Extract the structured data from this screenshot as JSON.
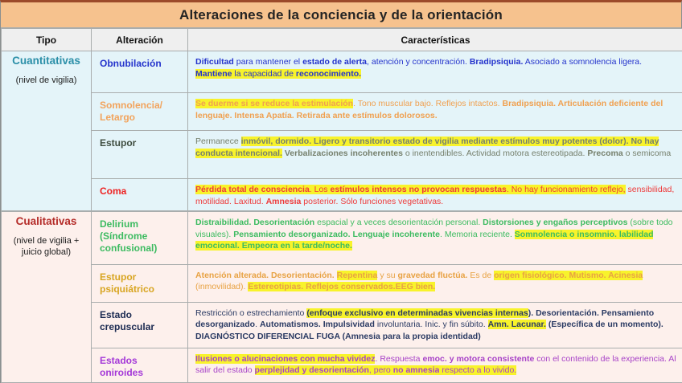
{
  "title": "Alteraciones de la conciencia y de la orientación",
  "columns": [
    "Tipo",
    "Alteración",
    "Características"
  ],
  "colors": {
    "title_bg": "#f6c28e",
    "header_bg": "#efefef",
    "quant_bg": "#e4f4f9",
    "qual_bg": "#fdf0ec",
    "highlight": "#f8f32b",
    "border": "#a9adad",
    "frame_top": "#9c4a2a"
  },
  "groups": [
    {
      "name": "Cuantitativas",
      "subtitle": "(nivel de vigilia)",
      "color": "#2b8fa8"
    },
    {
      "name": "Cualitativas",
      "subtitle": "(nivel de vigilia + juicio global)",
      "color": "#b42b28"
    }
  ],
  "rows": [
    {
      "label": "Obnubilación",
      "label_color": "#2433cc",
      "text_color": "#2433cc",
      "runs": [
        {
          "t": "Dificultad",
          "b": 1
        },
        {
          "t": " para mantener el "
        },
        {
          "t": "estado de alerta",
          "b": 1
        },
        {
          "t": ", atención y concentración. "
        },
        {
          "t": "Bradipsiquia.",
          "b": 1
        },
        {
          "t": " Asociado a somnolencia ligera. "
        },
        {
          "t": "Mantiene",
          "b": 1,
          "h": 1
        },
        {
          "t": " la capacidad de ",
          "h": 1
        },
        {
          "t": "reconocimiento.",
          "b": 1,
          "h": 1
        }
      ]
    },
    {
      "label": "Somnolencia/ Letargo",
      "label_color": "#f2a35c",
      "text_color": "#f0a050",
      "runs": [
        {
          "t": "Se duerme si se reduce la estimulación",
          "b": 1,
          "h": 1
        },
        {
          "t": ". Tono muscular bajo. Reflejos intactos. "
        },
        {
          "t": "Bradipsiquia. Articulación deficiente del lenguaje. Intensa Apatía. Retirada ante estímulos dolorosos.",
          "b": 1
        }
      ]
    },
    {
      "label": "Estupor",
      "label_color": "#3f4d40",
      "text_color": "#76806d",
      "runs": [
        {
          "t": "Permanece "
        },
        {
          "t": "inmóvil, dormido. Ligero y transitorio estado de vigilia mediante estímulos muy potentes (dolor). No hay conducta intencional.",
          "b": 1,
          "h": 1
        },
        {
          "t": " "
        },
        {
          "t": "Verbalizaciones incoherentes",
          "b": 1
        },
        {
          "t": " o inentendibles. Actividad motora estereotipada. "
        },
        {
          "t": "Precoma",
          "b": 1
        },
        {
          "t": " o semicoma"
        }
      ]
    },
    {
      "label": "Coma",
      "label_color": "#ee2222",
      "text_color": "#ee3b3b",
      "runs": [
        {
          "t": "Pérdida total de consciencia",
          "b": 1,
          "h": 1
        },
        {
          "t": ". Los ",
          "h": 1
        },
        {
          "t": "estímulos intensos no provocan respuestas",
          "b": 1,
          "h": 1
        },
        {
          "t": ". No hay funcionamiento reflejo,",
          "h": 1
        },
        {
          "t": " sensibilidad, motilidad. Laxitud. "
        },
        {
          "t": "Amnesia",
          "b": 1
        },
        {
          "t": " posterior. Sólo funciones vegetativas."
        }
      ]
    },
    {
      "label": "Delirium (Síndrome confusional)",
      "label_color": "#3cbb60",
      "text_color": "#3cbb60",
      "runs": [
        {
          "t": "Distraibilidad. Desorientación",
          "b": 1
        },
        {
          "t": " espacial y a veces desorientación personal. "
        },
        {
          "t": "Distorsiones y engaños perceptivos",
          "b": 1
        },
        {
          "t": " (sobre todo visuales). "
        },
        {
          "t": "Pensamiento desorganizado. Lenguaje incoherente",
          "b": 1
        },
        {
          "t": ". Memoria reciente. "
        },
        {
          "t": "Somnolencia o insomnio. labilidad emocional. Empeora en la tarde/noche.",
          "b": 1,
          "h": 1
        }
      ]
    },
    {
      "label": "Estupor psiquiátrico",
      "label_color": "#d8a521",
      "text_color": "#e8a243",
      "runs": [
        {
          "t": "Atención alterada. Desorientación. ",
          "b": 1
        },
        {
          "t": "Repentina",
          "b": 1,
          "h": 1
        },
        {
          "t": " y su "
        },
        {
          "t": "gravedad fluctúa.",
          "b": 1
        },
        {
          "t": " Es de "
        },
        {
          "t": "origen fisiológico. Mutismo. Acinesia",
          "b": 1,
          "h": 1
        },
        {
          "t": " (inmovilidad). "
        },
        {
          "t": "Estereotipias. Reflejos conservados.EEG bien.",
          "b": 1,
          "h": 1
        }
      ]
    },
    {
      "label": "Estado crepuscular",
      "label_color": "#1c2b52",
      "text_color": "#2a3a63",
      "runs": [
        {
          "t": "Restricción o estrechamiento "
        },
        {
          "t": "(enfoque exclusivo en determinadas vivencias internas",
          "b": 1,
          "h": 1
        },
        {
          "t": "). ",
          "b": 1
        },
        {
          "t": "Desorientación. Pensamiento desorganizado",
          "b": 1
        },
        {
          "t": ". "
        },
        {
          "t": "Automatismos. Impulsividad",
          "b": 1
        },
        {
          "t": " involuntaria. Inic. y fin súbito. "
        },
        {
          "t": "Amn. Lacunar.",
          "b": 1,
          "h": 1
        },
        {
          "t": " "
        },
        {
          "t": "(Específica de un momento). DIAGNÓSTICO DIFERENCIAL FUGA (Amnesia para la propia identidad)",
          "b": 1
        }
      ]
    },
    {
      "label": "Estados oniroides",
      "label_color": "#a438d8",
      "text_color": "#a843c8",
      "runs": [
        {
          "t": "Ilusiones o alucinaciones con mucha vividez",
          "b": 1,
          "h": 1
        },
        {
          "t": ". Respuesta "
        },
        {
          "t": "emoc. y motora consistente",
          "b": 1
        },
        {
          "t": " con el contenido de la experiencia. Al salir del estado "
        },
        {
          "t": "perplejidad y desorientación",
          "b": 1,
          "h": 1
        },
        {
          "t": ", pero ",
          "h": 1
        },
        {
          "t": "no amnesia",
          "b": 1,
          "h": 1
        },
        {
          "t": " respecto a lo vivido.",
          "h": 1
        }
      ]
    }
  ]
}
